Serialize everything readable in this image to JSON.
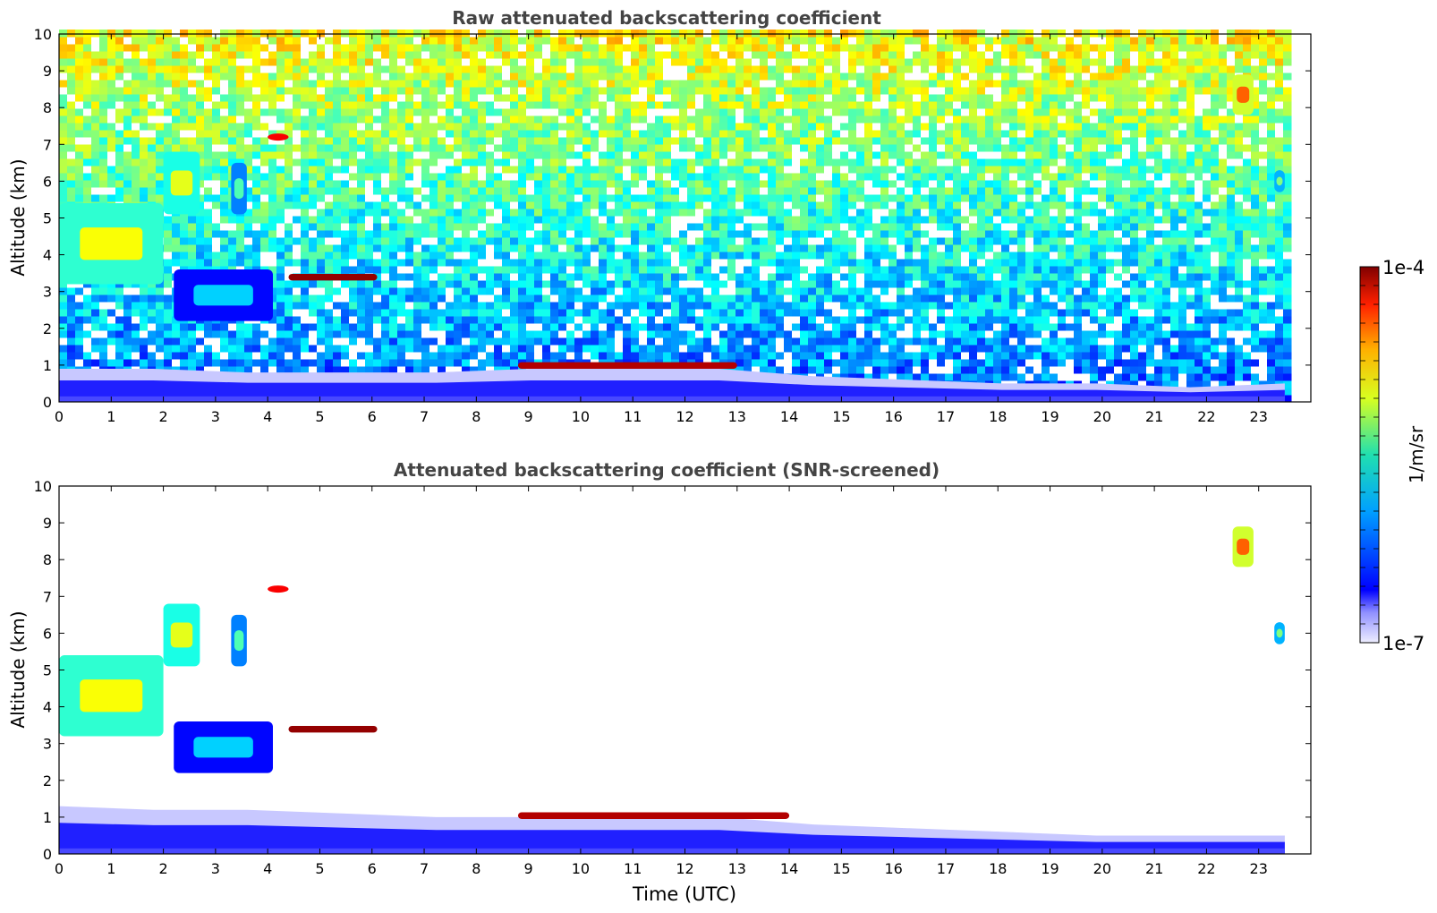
{
  "chart_data": [
    {
      "type": "heatmap",
      "title": "Raw attenuated backscattering coefficient",
      "xlabel": "",
      "ylabel": "Altitude (km)",
      "xlim": [
        0,
        24
      ],
      "ylim": [
        0,
        10
      ],
      "x_ticks": [
        "0",
        "1",
        "2",
        "3",
        "4",
        "5",
        "6",
        "7",
        "8",
        "9",
        "10",
        "11",
        "12",
        "13",
        "14",
        "15",
        "16",
        "17",
        "18",
        "19",
        "20",
        "21",
        "22",
        "23"
      ],
      "y_ticks": [
        "0",
        "1",
        "2",
        "3",
        "4",
        "5",
        "6",
        "7",
        "8",
        "9",
        "10"
      ],
      "data_extent_hours": [
        0,
        23.5
      ],
      "features": [
        {
          "kind": "boundary_layer",
          "t_start": 0,
          "t_end": 23.5,
          "alt_top_km": [
            0.9,
            0.9,
            0.8,
            0.8,
            0.8,
            0.9,
            0.9,
            0.9,
            0.7,
            0.6,
            0.5,
            0.5,
            0.4,
            0.5
          ],
          "level": 0.18
        },
        {
          "kind": "low_cloud",
          "t_start": 8.8,
          "t_end": 13.0,
          "alt_km": 1.0,
          "level": 0.95
        },
        {
          "kind": "cirrus",
          "t_start": 0,
          "t_end": 2.0,
          "alt_bottom_km": 3.2,
          "alt_top_km": 5.4,
          "level": 0.62
        },
        {
          "kind": "cirrus",
          "t_start": 2.0,
          "t_end": 2.7,
          "alt_bottom_km": 5.1,
          "alt_top_km": 6.8,
          "level": 0.6
        },
        {
          "kind": "cirrus",
          "t_start": 2.2,
          "t_end": 4.1,
          "alt_bottom_km": 2.2,
          "alt_top_km": 3.6,
          "level": 0.33
        },
        {
          "kind": "cirrus",
          "t_start": 3.3,
          "t_end": 3.6,
          "alt_bottom_km": 5.1,
          "alt_top_km": 6.5,
          "level": 0.45
        },
        {
          "kind": "thin_layer",
          "t_start": 4.4,
          "t_end": 6.1,
          "alt_km": 3.4,
          "level": 0.98
        },
        {
          "kind": "patch",
          "t_start": 4.0,
          "t_end": 4.4,
          "alt_km": 7.2,
          "level": 0.88
        },
        {
          "kind": "cirrus",
          "t_start": 22.5,
          "t_end": 22.9,
          "alt_bottom_km": 7.8,
          "alt_top_km": 8.9,
          "level": 0.78
        },
        {
          "kind": "cirrus",
          "t_start": 23.3,
          "t_end": 23.5,
          "alt_bottom_km": 5.7,
          "alt_top_km": 6.3,
          "level": 0.5
        }
      ]
    },
    {
      "type": "heatmap",
      "title": "Attenuated backscattering coefficient (SNR-screened)",
      "xlabel": "Time (UTC)",
      "ylabel": "Altitude (km)",
      "xlim": [
        0,
        24
      ],
      "ylim": [
        0,
        10
      ],
      "x_ticks": [
        "0",
        "1",
        "2",
        "3",
        "4",
        "5",
        "6",
        "7",
        "8",
        "9",
        "10",
        "11",
        "12",
        "13",
        "14",
        "15",
        "16",
        "17",
        "18",
        "19",
        "20",
        "21",
        "22",
        "23"
      ],
      "y_ticks": [
        "0",
        "1",
        "2",
        "3",
        "4",
        "5",
        "6",
        "7",
        "8",
        "9",
        "10"
      ],
      "data_extent_hours": [
        0,
        23.5
      ],
      "features": [
        {
          "kind": "boundary_layer",
          "t_start": 0,
          "t_end": 23.5,
          "alt_top_km": [
            1.3,
            1.2,
            1.2,
            1.1,
            1.0,
            1.0,
            1.0,
            1.0,
            0.8,
            0.7,
            0.6,
            0.5,
            0.5,
            0.5
          ],
          "level": 0.18
        },
        {
          "kind": "low_cloud",
          "t_start": 8.8,
          "t_end": 14.0,
          "alt_km": 1.05,
          "level": 0.95
        },
        {
          "kind": "cirrus",
          "t_start": 0,
          "t_end": 2.0,
          "alt_bottom_km": 3.2,
          "alt_top_km": 5.4,
          "level": 0.62
        },
        {
          "kind": "cirrus",
          "t_start": 2.0,
          "t_end": 2.7,
          "alt_bottom_km": 5.1,
          "alt_top_km": 6.8,
          "level": 0.6
        },
        {
          "kind": "cirrus",
          "t_start": 2.2,
          "t_end": 4.1,
          "alt_bottom_km": 2.2,
          "alt_top_km": 3.6,
          "level": 0.33
        },
        {
          "kind": "cirrus",
          "t_start": 3.3,
          "t_end": 3.6,
          "alt_bottom_km": 5.1,
          "alt_top_km": 6.5,
          "level": 0.45
        },
        {
          "kind": "thin_layer",
          "t_start": 4.4,
          "t_end": 6.1,
          "alt_km": 3.4,
          "level": 0.98
        },
        {
          "kind": "patch",
          "t_start": 4.0,
          "t_end": 4.4,
          "alt_km": 7.2,
          "level": 0.88
        },
        {
          "kind": "cirrus",
          "t_start": 22.5,
          "t_end": 22.9,
          "alt_bottom_km": 7.8,
          "alt_top_km": 8.9,
          "level": 0.78
        },
        {
          "kind": "cirrus",
          "t_start": 23.3,
          "t_end": 23.5,
          "alt_bottom_km": 5.7,
          "alt_top_km": 6.3,
          "level": 0.5
        }
      ]
    }
  ],
  "colorbar": {
    "label": "1/m/sr",
    "max_label": "1e-4",
    "min_label": "1e-7",
    "scale": "log",
    "colormap": "jet"
  }
}
